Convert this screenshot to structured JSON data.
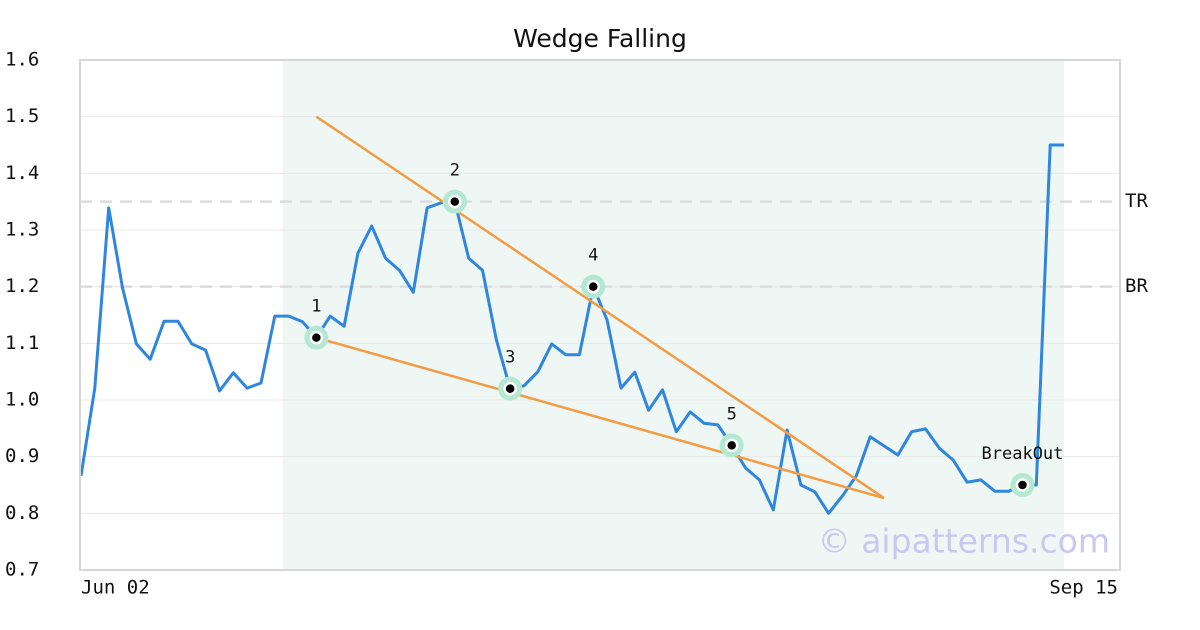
{
  "chart_data": {
    "type": "line",
    "title": "Wedge Falling",
    "categories": [
      "Jun 02",
      null,
      null,
      null,
      null,
      null,
      null,
      null,
      null,
      null,
      null,
      null,
      null,
      null,
      null,
      null,
      null,
      null,
      null,
      null,
      null,
      null,
      null,
      null,
      null,
      null,
      null,
      null,
      null,
      null,
      null,
      null,
      null,
      null,
      null,
      null,
      null,
      null,
      null,
      null,
      null,
      null,
      null,
      null,
      null,
      null,
      null,
      null,
      null,
      null,
      null,
      null,
      null,
      null,
      null,
      null,
      null,
      null,
      null,
      null,
      null,
      null,
      null,
      null,
      null,
      null,
      null,
      null,
      null,
      null,
      null,
      "Sep 15"
    ],
    "series": [
      {
        "color": "#2e86de",
        "values": [
          0.866,
          1.021,
          1.339,
          1.198,
          1.099,
          1.072,
          1.139,
          1.139,
          1.099,
          1.088,
          1.016,
          1.048,
          1.021,
          1.03,
          1.148,
          1.148,
          1.138,
          1.11,
          1.148,
          1.13,
          1.259,
          1.307,
          1.25,
          1.229,
          1.19,
          1.339,
          1.348,
          1.35,
          1.25,
          1.229,
          1.106,
          1.02,
          1.025,
          1.05,
          1.099,
          1.08,
          1.08,
          1.2,
          1.141,
          1.021,
          1.049,
          0.982,
          1.018,
          0.944,
          0.979,
          0.959,
          0.956,
          0.92,
          0.88,
          0.859,
          0.806,
          0.947,
          0.85,
          0.838,
          0.8,
          0.831,
          0.866,
          0.935,
          0.919,
          0.903,
          0.944,
          0.949,
          0.915,
          0.894,
          0.855,
          0.859,
          0.839,
          0.839,
          0.85,
          0.85,
          1.45,
          1.45
        ]
      }
    ],
    "ylim": [
      0.7,
      1.6
    ],
    "yticks": [
      0.7,
      0.8,
      0.9,
      {
        "value": 1,
        "label": "1.0"
      },
      1.1,
      1.2,
      1.3,
      1.4,
      1.5,
      1.6
    ],
    "grid": true,
    "highlight": [
      15,
      71
    ],
    "highlight_color": "#eef7f3",
    "levels": [
      {
        "label": "TR",
        "value": 1.35
      },
      {
        "label": "BR",
        "value": 1.2
      }
    ],
    "trendlines": [
      {
        "color": "#f39c45",
        "x": [
          17,
          58
        ],
        "values": [
          1.5,
          0.827
        ]
      },
      {
        "color": "#f39c45",
        "x": [
          17,
          58
        ],
        "values": [
          1.11,
          0.827
        ]
      }
    ],
    "points": [
      {
        "label": "1",
        "x": 17,
        "value": 1.11
      },
      {
        "label": "2",
        "x": 27,
        "value": 1.35
      },
      {
        "label": "3",
        "x": 31,
        "value": 1.02
      },
      {
        "label": "4",
        "x": 37,
        "value": 1.2
      },
      {
        "label": "5",
        "x": 47,
        "value": 0.92
      },
      {
        "label": "BreakOut",
        "x": 68,
        "value": 0.85
      }
    ],
    "watermark": "© aipatterns.com"
  }
}
